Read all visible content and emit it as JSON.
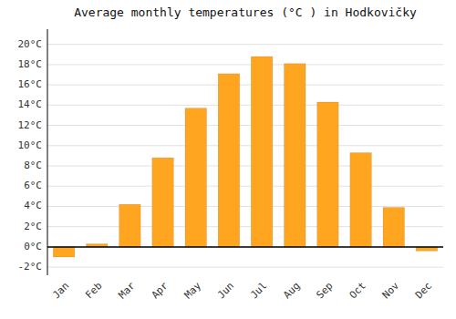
{
  "chart_data": {
    "type": "bar",
    "title": "Average monthly temperatures (°C ) in Hodkovičky",
    "categories": [
      "Jan",
      "Feb",
      "Mar",
      "Apr",
      "May",
      "Jun",
      "Jul",
      "Aug",
      "Sep",
      "Oct",
      "Nov",
      "Dec"
    ],
    "values": [
      -1.0,
      0.3,
      4.2,
      8.8,
      13.7,
      17.1,
      18.8,
      18.1,
      14.3,
      9.3,
      3.9,
      -0.4
    ],
    "color": "#FFA520",
    "ylim": [
      -2.8,
      21.5
    ],
    "yticks": [
      {
        "value": -2,
        "label": "-2°C"
      },
      {
        "value": 0,
        "label": "0°C"
      },
      {
        "value": 2,
        "label": "2°C"
      },
      {
        "value": 4,
        "label": "4°C"
      },
      {
        "value": 6,
        "label": "6°C"
      },
      {
        "value": 8,
        "label": "8°C"
      },
      {
        "value": 10,
        "label": "10°C"
      },
      {
        "value": 12,
        "label": "12°C"
      },
      {
        "value": 14,
        "label": "14°C"
      },
      {
        "value": 16,
        "label": "16°C"
      },
      {
        "value": 18,
        "label": "18°C"
      },
      {
        "value": 20,
        "label": "20°C"
      }
    ],
    "grid": true
  }
}
